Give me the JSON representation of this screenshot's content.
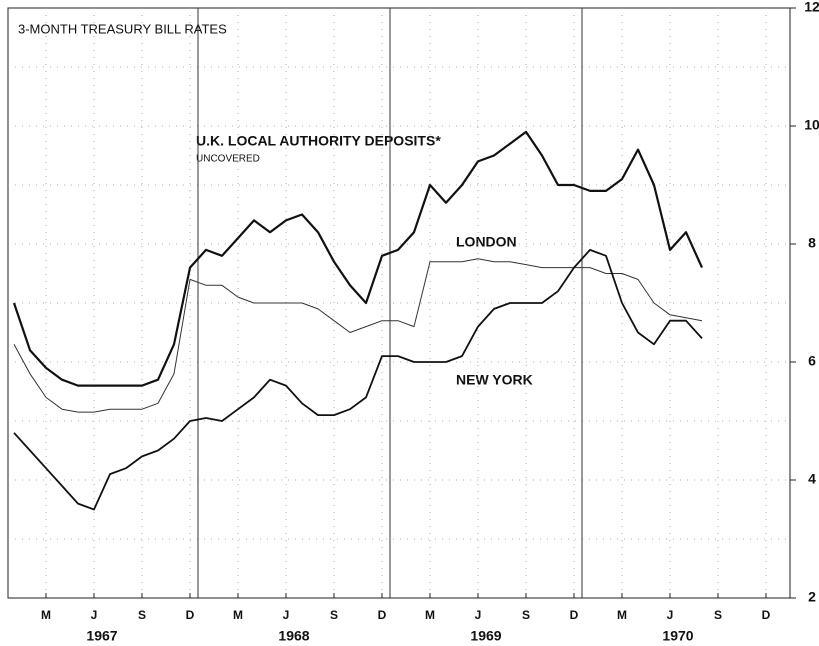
{
  "chart_data": {
    "type": "line",
    "title": "3-MONTH TREASURY BILL RATES",
    "annotations": [
      "UNCOVERED"
    ],
    "categories": [
      "1967-01",
      "1967-02",
      "1967-03",
      "1967-04",
      "1967-05",
      "1967-06",
      "1967-07",
      "1967-08",
      "1967-09",
      "1967-10",
      "1967-11",
      "1967-12",
      "1968-01",
      "1968-02",
      "1968-03",
      "1968-04",
      "1968-05",
      "1968-06",
      "1968-07",
      "1968-08",
      "1968-09",
      "1968-10",
      "1968-11",
      "1968-12",
      "1969-01",
      "1969-02",
      "1969-03",
      "1969-04",
      "1969-05",
      "1969-06",
      "1969-07",
      "1969-08",
      "1969-09",
      "1969-10",
      "1969-11",
      "1969-12",
      "1970-01",
      "1970-02",
      "1970-03",
      "1970-04",
      "1970-05",
      "1970-06",
      "1970-07",
      "1970-08",
      "1970-09",
      "1970-10",
      "1970-11",
      "1970-12"
    ],
    "series": [
      {
        "name": "U.K. LOCAL AUTHORITY DEPOSITS*",
        "color": "#111111",
        "values": [
          7.0,
          6.2,
          5.9,
          5.7,
          5.6,
          5.6,
          5.6,
          5.6,
          5.6,
          5.7,
          6.3,
          7.6,
          7.9,
          7.8,
          8.1,
          8.4,
          8.2,
          8.4,
          8.5,
          8.2,
          7.7,
          7.3,
          7.0,
          7.8,
          7.9,
          8.2,
          9.0,
          8.7,
          9.0,
          9.4,
          9.5,
          9.7,
          9.9,
          9.5,
          9.0,
          9.0,
          8.9,
          8.9,
          9.1,
          9.6,
          9.0,
          7.9,
          8.2,
          7.6,
          null,
          null,
          null,
          null
        ]
      },
      {
        "name": "LONDON",
        "color": "#333333",
        "values": [
          6.3,
          5.8,
          5.4,
          5.2,
          5.15,
          5.15,
          5.2,
          5.2,
          5.2,
          5.3,
          5.8,
          7.4,
          7.3,
          7.3,
          7.1,
          7.0,
          7.0,
          7.0,
          7.0,
          6.9,
          6.7,
          6.5,
          6.6,
          6.7,
          6.7,
          6.6,
          7.7,
          7.7,
          7.7,
          7.75,
          7.7,
          7.7,
          7.65,
          7.6,
          7.6,
          7.6,
          7.6,
          7.5,
          7.5,
          7.4,
          7.0,
          6.8,
          6.75,
          6.7,
          null,
          null,
          null,
          null
        ]
      },
      {
        "name": "NEW YORK",
        "color": "#111111",
        "values": [
          4.8,
          4.5,
          4.2,
          3.9,
          3.6,
          3.5,
          4.1,
          4.2,
          4.4,
          4.5,
          4.7,
          5.0,
          5.05,
          5.0,
          5.2,
          5.4,
          5.7,
          5.6,
          5.3,
          5.1,
          5.1,
          5.2,
          5.4,
          6.1,
          6.1,
          6.0,
          6.0,
          6.0,
          6.1,
          6.6,
          6.9,
          7.0,
          7.0,
          7.0,
          7.2,
          7.6,
          7.9,
          7.8,
          7.0,
          6.5,
          6.3,
          6.7,
          6.7,
          6.4,
          null,
          null,
          null,
          null
        ]
      }
    ],
    "ylim": [
      2,
      12
    ],
    "yticks": [
      2,
      4,
      6,
      8,
      10,
      12
    ],
    "grid": true,
    "xticks": [
      {
        "value": "1967-03",
        "label": "M"
      },
      {
        "value": "1967-06",
        "label": "J"
      },
      {
        "value": "1967-09",
        "label": "S"
      },
      {
        "value": "1967-12",
        "label": "D"
      },
      {
        "value": "1968-03",
        "label": "M"
      },
      {
        "value": "1968-06",
        "label": "J"
      },
      {
        "value": "1968-09",
        "label": "S"
      },
      {
        "value": "1968-12",
        "label": "D"
      },
      {
        "value": "1969-03",
        "label": "M"
      },
      {
        "value": "1969-06",
        "label": "J"
      },
      {
        "value": "1969-09",
        "label": "S"
      },
      {
        "value": "1969-12",
        "label": "D"
      },
      {
        "value": "1970-03",
        "label": "M"
      },
      {
        "value": "1970-06",
        "label": "J"
      },
      {
        "value": "1970-09",
        "label": "S"
      },
      {
        "value": "1970-12",
        "label": "D"
      }
    ],
    "year_labels": [
      {
        "value": "1967-07",
        "label": "1967"
      },
      {
        "value": "1968-07",
        "label": "1968"
      },
      {
        "value": "1969-07",
        "label": "1969"
      },
      {
        "value": "1970-07",
        "label": "1970"
      }
    ]
  }
}
